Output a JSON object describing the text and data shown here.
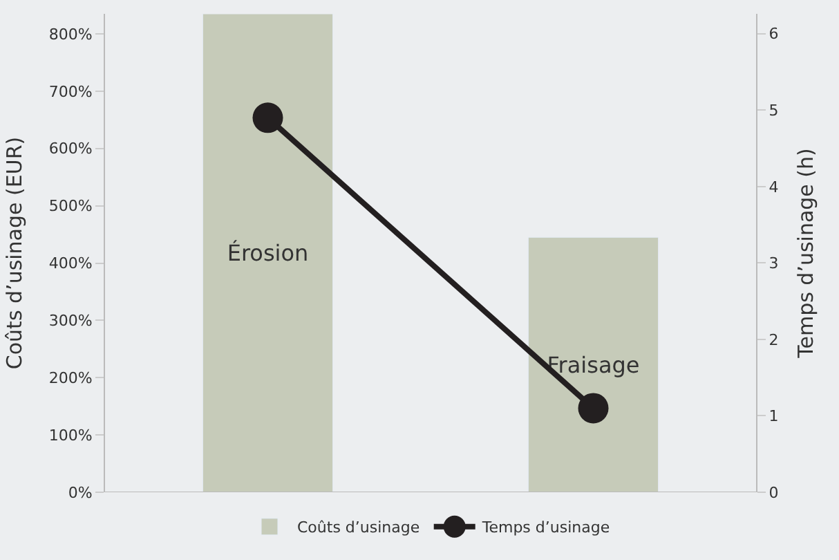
{
  "chart_data": {
    "type": "bar",
    "categories": [
      "Érosion",
      "Fraisage"
    ],
    "series": [
      {
        "name": "Coûts d’usinage",
        "color": "#c6cbb9",
        "values": [
          835,
          445
        ]
      },
      {
        "name": "Temps d’usinage",
        "type": "line",
        "axis": "y2",
        "color": "#231f20",
        "values": [
          4.9,
          1.1
        ]
      }
    ],
    "ylabel": "Coûts d’usinage (EUR)",
    "y2label": "Temps d’usinage (h)",
    "ylim": [
      0,
      835
    ],
    "yticks": [
      {
        "value": 0,
        "label": "0%"
      },
      {
        "value": 100,
        "label": "100%"
      },
      {
        "value": 200,
        "label": "200%"
      },
      {
        "value": 300,
        "label": "300%"
      },
      {
        "value": 400,
        "label": "400%"
      },
      {
        "value": 500,
        "label": "500%"
      },
      {
        "value": 600,
        "label": "600%"
      },
      {
        "value": 700,
        "label": "700%"
      },
      {
        "value": 800,
        "label": "800%"
      }
    ],
    "y2lim": [
      0,
      6.26
    ],
    "y2ticks": [
      0,
      1,
      2,
      3,
      4,
      5,
      6
    ],
    "marker": "circle",
    "line_style": "solid",
    "grid": false,
    "legend": "bottom",
    "tick_labels": "y"
  }
}
